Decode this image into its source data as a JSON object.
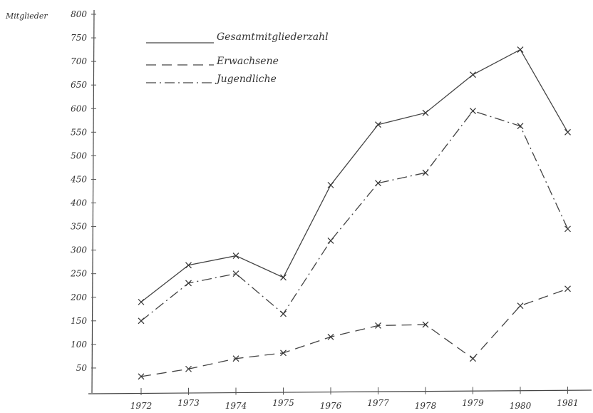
{
  "chart_data": {
    "type": "line",
    "ylabel": "Mitglieder",
    "xlabel": "",
    "categories": [
      "1972",
      "1973",
      "1974",
      "1975",
      "1976",
      "1977",
      "1978",
      "1979",
      "1980",
      "1981"
    ],
    "yticks": [
      50,
      100,
      150,
      200,
      250,
      300,
      350,
      400,
      450,
      500,
      550,
      600,
      650,
      700,
      750,
      800
    ],
    "ylim": [
      0,
      800
    ],
    "legend_position": "top-left",
    "series": [
      {
        "name": "Gesamtmitgliederzahl",
        "style": "solid",
        "values": [
          190,
          268,
          288,
          242,
          438,
          566,
          591,
          672,
          725,
          550
        ]
      },
      {
        "name": "Erwachsene",
        "style": "dashed",
        "values": [
          32,
          48,
          70,
          82,
          116,
          140,
          142,
          70,
          182,
          218
        ]
      },
      {
        "name": "Jugendliche",
        "style": "dashdot",
        "values": [
          150,
          230,
          250,
          165,
          320,
          442,
          464,
          595,
          563,
          345
        ]
      }
    ]
  }
}
